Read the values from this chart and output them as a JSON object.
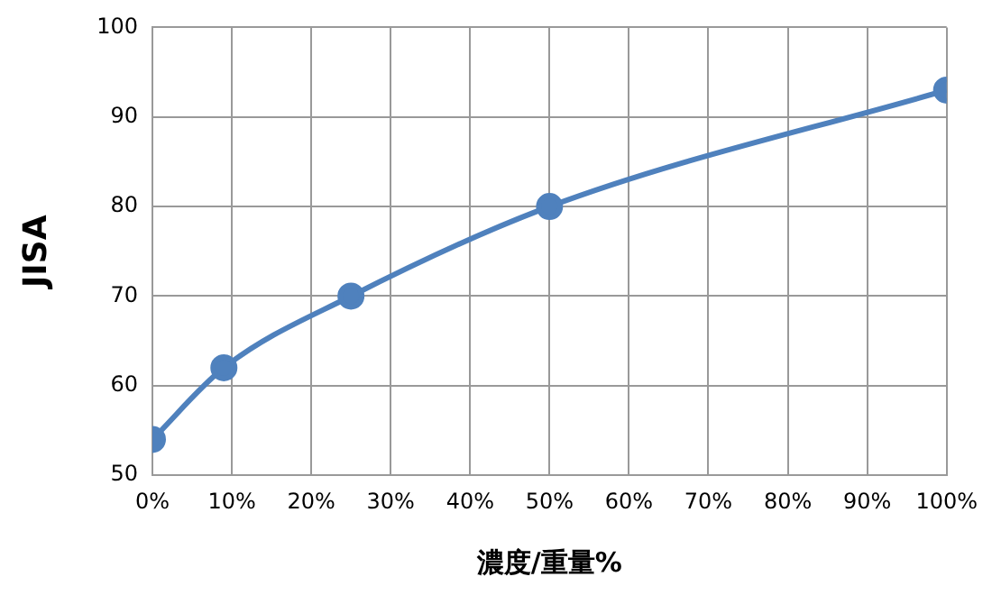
{
  "chart_data": {
    "type": "line",
    "xlabel": "濃度/重量%",
    "ylabel": "JISA",
    "x": [
      0,
      9,
      25,
      50,
      100
    ],
    "series": [
      {
        "color": "#4f81bd",
        "values": [
          54,
          62,
          70,
          80,
          93
        ]
      }
    ],
    "xlim": [
      0,
      100
    ],
    "xticks": [
      {
        "value": 0,
        "label": "0%"
      },
      {
        "value": 10,
        "label": "10%"
      },
      {
        "value": 20,
        "label": "20%"
      },
      {
        "value": 30,
        "label": "30%"
      },
      {
        "value": 40,
        "label": "40%"
      },
      {
        "value": 50,
        "label": "50%"
      },
      {
        "value": 60,
        "label": "60%"
      },
      {
        "value": 70,
        "label": "70%"
      },
      {
        "value": 80,
        "label": "80%"
      },
      {
        "value": 90,
        "label": "90%"
      },
      {
        "value": 100,
        "label": "100%"
      }
    ],
    "ylim": [
      50,
      100
    ],
    "yticks": [
      50,
      60,
      70,
      80,
      90,
      100
    ],
    "grid": true,
    "legend": false,
    "marker": "circle",
    "line_style": "solid"
  }
}
